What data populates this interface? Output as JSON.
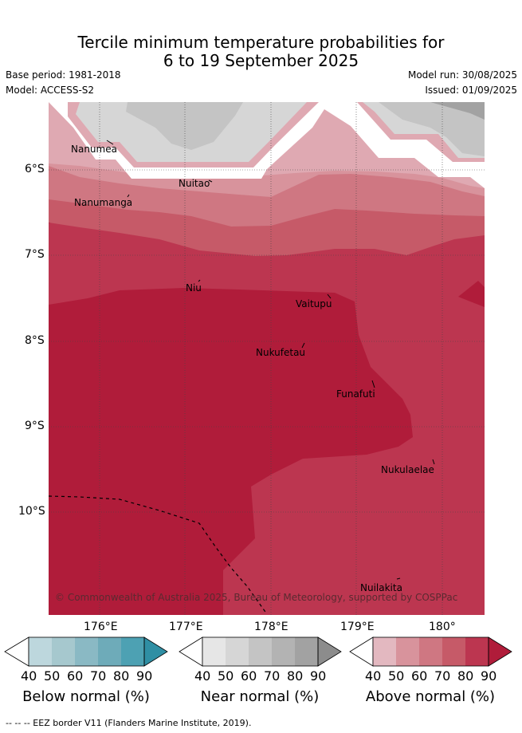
{
  "title": {
    "line1": "Tercile minimum temperature probabilities for",
    "line2": "6 to 19 September 2025"
  },
  "meta": {
    "base_period": "Base period: 1981-2018",
    "model": "Model: ACCESS-S2",
    "model_run": "Model run: 30/08/2025",
    "issued": "Issued: 01/09/2025"
  },
  "axes": {
    "lon_labels": [
      "176°E",
      "177°E",
      "178°E",
      "179°E",
      "180°"
    ],
    "lat_labels": [
      "6°S",
      "7°S",
      "8°S",
      "9°S",
      "10°S"
    ]
  },
  "places": [
    {
      "name": "Nanumea"
    },
    {
      "name": "Nuitao"
    },
    {
      "name": "Nanumanga"
    },
    {
      "name": "Niu"
    },
    {
      "name": "Vaitupu"
    },
    {
      "name": "Nukufetau"
    },
    {
      "name": "Funafuti"
    },
    {
      "name": "Nukulaelae"
    },
    {
      "name": "Nuilakita"
    }
  ],
  "copyright": "© Commonwealth of Australia 2025, Bureau of Meteorology, supported by COSPPac",
  "colorbars": [
    {
      "title": "Below normal (%)",
      "ticks": [
        "40",
        "50",
        "60",
        "70",
        "80",
        "90"
      ],
      "colors": [
        "#bdd7dd",
        "#a6c8ce",
        "#8ab9c4",
        "#6eabb9",
        "#4da1b3",
        "#2f8fa4"
      ]
    },
    {
      "title": "Near normal (%)",
      "ticks": [
        "40",
        "50",
        "60",
        "70",
        "80",
        "90"
      ],
      "colors": [
        "#e6e6e6",
        "#d6d6d6",
        "#c4c4c4",
        "#b3b3b3",
        "#a2a2a2",
        "#8c8c8c"
      ]
    },
    {
      "title": "Above normal (%)",
      "ticks": [
        "40",
        "50",
        "60",
        "70",
        "80",
        "90"
      ],
      "colors": [
        "#e3b8c0",
        "#d8939c",
        "#cf7782",
        "#c65a68",
        "#bc3650",
        "#b01c3a"
      ]
    }
  ],
  "footer": "-- -- -- EEZ border V11 (Flanders Marine Institute, 2019)."
}
